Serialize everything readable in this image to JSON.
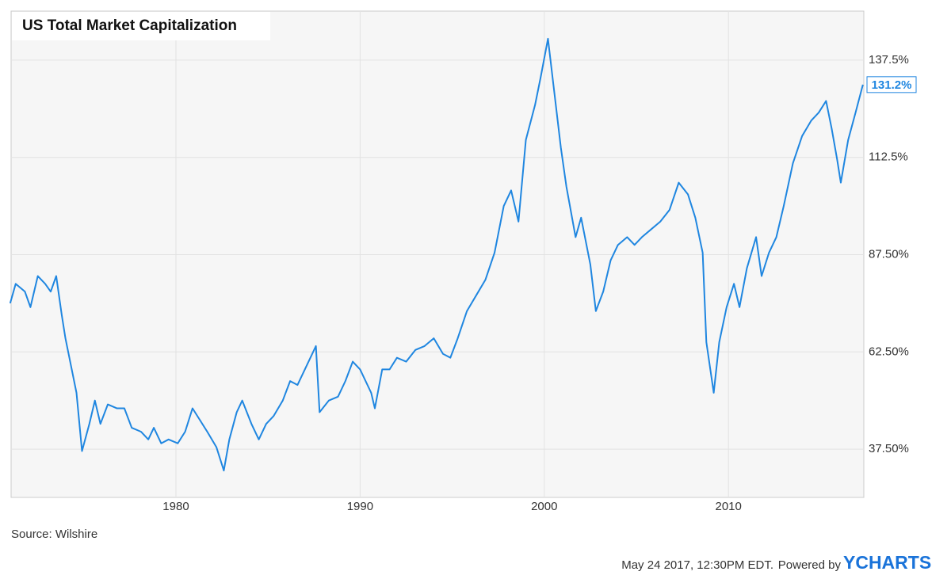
{
  "chart_data": {
    "type": "line",
    "title": "US Total Market Capitalization",
    "source": "Source: Wilshire",
    "timestamp": "May 24 2017, 12:30PM EDT.",
    "powered_by": "Powered by",
    "brand": "YCHARTS",
    "grid": true,
    "xlim": [
      1971.05,
      2017.35
    ],
    "xticks": [
      1980,
      1990,
      2000,
      2010
    ],
    "ylim": [
      25.1,
      150.1
    ],
    "yticks": [
      {
        "value": 37.5,
        "label": "37.50%"
      },
      {
        "value": 62.5,
        "label": "62.50%"
      },
      {
        "value": 87.5,
        "label": "87.50%"
      },
      {
        "value": 112.5,
        "label": "112.5%"
      },
      {
        "value": 137.5,
        "label": "137.5%"
      }
    ],
    "x": [
      1971.0,
      1971.3,
      1971.8,
      1972.1,
      1972.5,
      1972.9,
      1973.2,
      1973.5,
      1973.8,
      1974.0,
      1974.3,
      1974.6,
      1974.9,
      1975.3,
      1975.6,
      1975.9,
      1976.3,
      1976.8,
      1977.2,
      1977.6,
      1978.1,
      1978.5,
      1978.8,
      1979.2,
      1979.6,
      1980.1,
      1980.5,
      1980.9,
      1981.3,
      1981.7,
      1982.2,
      1982.6,
      1982.9,
      1983.3,
      1983.6,
      1984.1,
      1984.5,
      1984.9,
      1985.3,
      1985.8,
      1986.2,
      1986.6,
      1987.0,
      1987.6,
      1987.8,
      1988.3,
      1988.8,
      1989.2,
      1989.6,
      1990.0,
      1990.6,
      1990.8,
      1991.2,
      1991.6,
      1992.0,
      1992.5,
      1993.0,
      1993.5,
      1994.0,
      1994.5,
      1994.9,
      1995.3,
      1995.8,
      1996.3,
      1996.8,
      1997.3,
      1997.8,
      1998.2,
      1998.6,
      1999.0,
      1999.5,
      1999.8,
      2000.2,
      2000.5,
      2000.9,
      2001.2,
      2001.7,
      2002.0,
      2002.5,
      2002.8,
      2003.2,
      2003.6,
      2004.0,
      2004.5,
      2004.9,
      2005.3,
      2005.8,
      2006.3,
      2006.8,
      2007.3,
      2007.8,
      2008.2,
      2008.6,
      2008.8,
      2009.2,
      2009.5,
      2009.9,
      2010.3,
      2010.6,
      2011.0,
      2011.5,
      2011.8,
      2012.2,
      2012.6,
      2013.0,
      2013.5,
      2014.0,
      2014.5,
      2014.9,
      2015.3,
      2015.6,
      2015.9,
      2016.1,
      2016.5,
      2016.9,
      2017.3
    ],
    "series": [
      {
        "name": "US Total Market Capitalization",
        "color": "#1f86e0",
        "values": [
          75,
          80,
          78,
          74,
          82,
          80,
          78,
          82,
          72,
          66,
          59,
          52,
          37,
          44,
          50,
          44,
          49,
          48,
          48,
          43,
          42,
          40,
          43,
          39,
          40,
          39,
          42,
          48,
          45,
          42,
          38,
          32,
          40,
          47,
          50,
          44,
          40,
          44,
          46,
          50,
          55,
          54,
          58,
          64,
          47,
          50,
          51,
          55,
          60,
          58,
          52,
          48,
          58,
          58,
          61,
          60,
          63,
          64,
          66,
          62,
          61,
          66,
          73,
          77,
          81,
          88,
          100,
          104,
          96,
          117,
          126,
          133,
          143,
          131,
          115,
          105,
          92,
          97,
          85,
          73,
          78,
          86,
          90,
          92,
          90,
          92,
          94,
          96,
          99,
          106,
          103,
          97,
          88,
          65,
          52,
          65,
          74,
          80,
          74,
          84,
          92,
          82,
          88,
          92,
          100,
          111,
          118,
          122,
          124,
          127,
          120,
          112,
          106,
          117,
          124,
          131.2
        ],
        "value_labels": [
          null,
          null,
          null,
          null,
          null,
          null,
          null,
          null,
          null,
          null,
          null,
          null,
          null,
          null,
          null,
          null,
          null,
          null,
          null,
          null,
          null,
          null,
          null,
          null,
          null,
          null,
          null,
          null,
          null,
          null,
          null,
          null,
          null,
          null,
          null,
          null,
          null,
          null,
          null,
          null,
          null,
          null,
          null,
          null,
          null,
          null,
          null,
          null,
          null,
          null,
          null,
          null,
          null,
          null,
          null,
          null,
          null,
          null,
          null,
          null,
          null,
          null,
          null,
          null,
          null,
          null,
          null,
          null,
          null,
          null,
          null,
          null,
          null,
          null,
          null,
          null,
          null,
          null,
          null,
          null,
          null,
          null,
          null,
          null,
          null,
          null,
          null,
          null,
          null,
          null,
          null,
          null,
          null,
          null,
          null,
          null,
          null,
          null,
          null,
          null,
          null,
          null,
          null,
          null,
          null,
          null,
          null,
          null,
          null,
          null,
          null,
          null,
          null,
          null,
          null,
          "131.2%"
        ]
      }
    ]
  }
}
